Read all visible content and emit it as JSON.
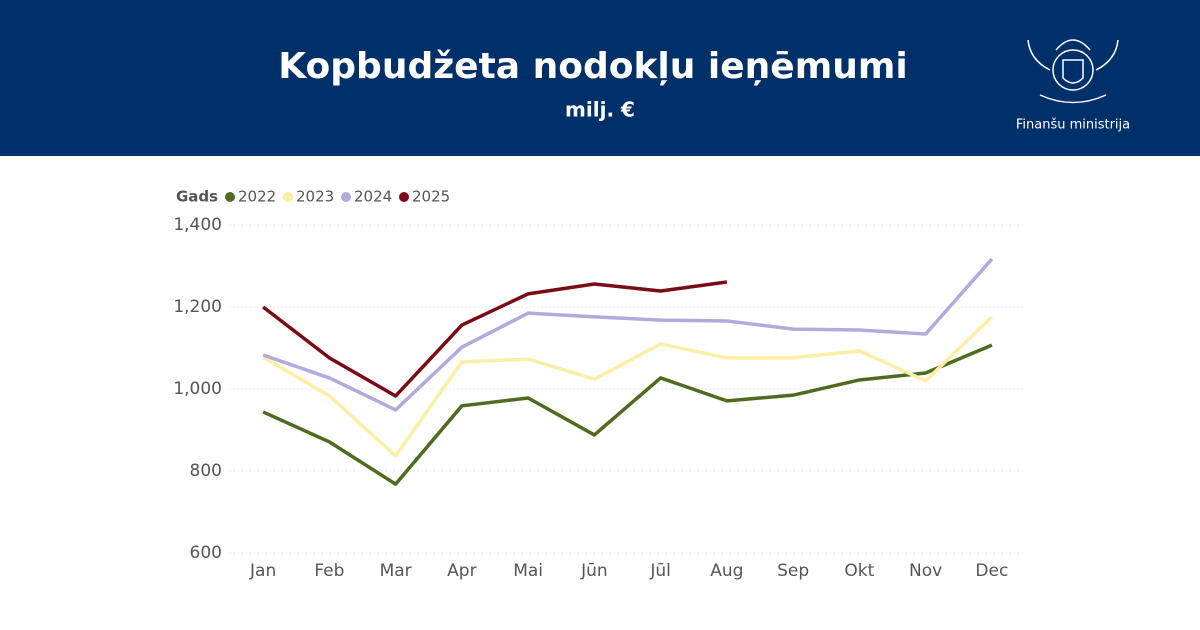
{
  "header": {
    "organization": "Finanšu ministrija"
  },
  "chart_data": {
    "type": "line",
    "title": "Kopbudžeta nodokļu ieņēmumi",
    "subtitle": "milj. €",
    "legend_title": "Gads",
    "categories": [
      "Jan",
      "Feb",
      "Mar",
      "Apr",
      "Mai",
      "Jūn",
      "Jūl",
      "Aug",
      "Sep",
      "Okt",
      "Nov",
      "Dec"
    ],
    "series": [
      {
        "name": "2022",
        "color": "#4e6b1f",
        "values": [
          944,
          871,
          768,
          959,
          978,
          888,
          1027,
          971,
          985,
          1022,
          1039,
          1107
        ]
      },
      {
        "name": "2023",
        "color": "#fbeea6",
        "values": [
          1078,
          983,
          837,
          1066,
          1073,
          1024,
          1110,
          1076,
          1076,
          1093,
          1020,
          1176
        ]
      },
      {
        "name": "2024",
        "color": "#b3a9dd",
        "values": [
          1083,
          1027,
          949,
          1102,
          1185,
          1176,
          1168,
          1166,
          1146,
          1144,
          1134,
          1317
        ]
      },
      {
        "name": "2025",
        "color": "#7a0a17",
        "values": [
          1200,
          1076,
          983,
          1156,
          1232,
          1256,
          1239,
          1261,
          null,
          null,
          null,
          null
        ]
      }
    ],
    "ylim": [
      600,
      1400
    ],
    "yticks": [
      600,
      800,
      {
        "value": 1000,
        "label": "1,000"
      },
      {
        "value": 1200,
        "label": "1,200"
      },
      {
        "value": 1400,
        "label": "1,400"
      }
    ],
    "grid": true,
    "legend": "top-left"
  }
}
